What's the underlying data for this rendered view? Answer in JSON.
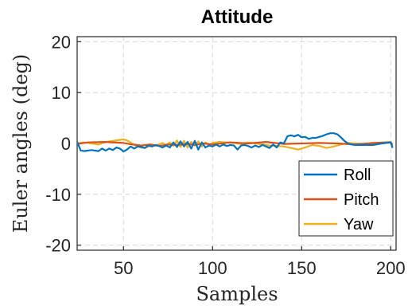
{
  "chart_data": {
    "type": "line",
    "title": "Attitude",
    "xlabel": "Samples",
    "ylabel": "Euler angles (deg)",
    "xlim": [
      24,
      203
    ],
    "ylim": [
      -21,
      21
    ],
    "xticks": [
      50,
      100,
      150,
      200
    ],
    "yticks": [
      -20,
      -10,
      0,
      10,
      20
    ],
    "grid": true,
    "legend_position": "bottom-right",
    "colors": {
      "roll": "#0072BD",
      "pitch": "#D95319",
      "yaw": "#EDB120"
    },
    "series": [
      {
        "name": "Roll",
        "key": "roll",
        "x": [
          24,
          26,
          28,
          32,
          36,
          38,
          40,
          42,
          44,
          46,
          48,
          50,
          52,
          54,
          56,
          58,
          60,
          62,
          64,
          66,
          68,
          70,
          72,
          74,
          76,
          78,
          80,
          82,
          84,
          86,
          88,
          90,
          92,
          94,
          96,
          98,
          100,
          102,
          104,
          106,
          108,
          110,
          112,
          114,
          116,
          118,
          120,
          122,
          124,
          126,
          128,
          130,
          132,
          134,
          136,
          138,
          140,
          142,
          144,
          146,
          148,
          150,
          152,
          154,
          156,
          158,
          160,
          162,
          164,
          166,
          168,
          170,
          172,
          174,
          176,
          178,
          180,
          185,
          190,
          195,
          200,
          201
        ],
        "y": [
          0.3,
          -1.4,
          -1.5,
          -1.3,
          -1.5,
          -1.0,
          -1.4,
          -1.0,
          -1.3,
          -0.8,
          -1.0,
          -1.6,
          -1.2,
          -0.6,
          -1.0,
          -0.6,
          -0.7,
          -0.9,
          -0.4,
          -0.6,
          -0.3,
          -0.5,
          -0.8,
          -0.4,
          -0.8,
          0.2,
          -0.7,
          0.4,
          -0.6,
          0.3,
          -1.0,
          0.5,
          -1.2,
          0.2,
          -0.8,
          -0.4,
          -0.6,
          -0.2,
          -0.6,
          -0.2,
          -0.5,
          -0.3,
          -0.4,
          -1.2,
          -0.4,
          -0.3,
          -0.5,
          -0.8,
          -0.4,
          -0.7,
          -0.3,
          -0.6,
          -0.9,
          -0.2,
          -0.8,
          0.2,
          0.0,
          1.4,
          1.6,
          1.4,
          1.7,
          1.2,
          1.3,
          0.9,
          1.1,
          1.1,
          1.3,
          1.5,
          1.8,
          2.0,
          2.0,
          1.8,
          1.2,
          0.5,
          0.0,
          -0.2,
          -0.3,
          -0.3,
          -0.3,
          0.0,
          0.2,
          -0.9
        ]
      },
      {
        "name": "Pitch",
        "key": "pitch",
        "x": [
          24,
          30,
          40,
          50,
          55,
          60,
          65,
          70,
          75,
          80,
          85,
          90,
          95,
          100,
          110,
          120,
          130,
          140,
          150,
          160,
          170,
          180,
          190,
          200,
          201
        ],
        "y": [
          -0.1,
          0.2,
          0.3,
          0.1,
          -0.2,
          -0.4,
          -0.2,
          -0.5,
          -0.2,
          -0.3,
          -0.1,
          -0.3,
          0.0,
          -0.2,
          0.2,
          0.0,
          0.3,
          -0.1,
          0.0,
          0.1,
          0.0,
          -0.2,
          0.1,
          0.2,
          -0.2
        ]
      },
      {
        "name": "Yaw",
        "key": "yaw",
        "x": [
          24,
          28,
          32,
          36,
          40,
          44,
          48,
          50,
          52,
          54,
          56,
          58,
          60,
          62,
          64,
          66,
          68,
          70,
          72,
          74,
          76,
          78,
          80,
          82,
          84,
          86,
          88,
          90,
          92,
          94,
          96,
          98,
          100,
          104,
          108,
          112,
          116,
          120,
          124,
          128,
          132,
          136,
          140,
          144,
          148,
          152,
          156,
          160,
          164,
          168,
          172,
          176,
          180,
          185,
          190,
          195,
          200,
          201
        ],
        "y": [
          0.0,
          0.2,
          0.0,
          -0.2,
          0.3,
          0.5,
          0.7,
          0.8,
          0.6,
          0.2,
          -0.3,
          -0.6,
          -0.8,
          -0.9,
          -0.6,
          -0.3,
          -0.5,
          -0.2,
          0.1,
          -0.4,
          0.2,
          -0.5,
          0.6,
          -0.7,
          0.5,
          -0.8,
          0.3,
          -0.4,
          0.4,
          -0.6,
          0.2,
          -0.3,
          0.1,
          0.3,
          0.2,
          0.1,
          -0.1,
          0.2,
          0.0,
          -0.2,
          -0.4,
          -0.5,
          -0.6,
          -0.9,
          -1.2,
          -0.8,
          -0.3,
          -0.5,
          -0.9,
          -0.6,
          -0.2,
          0.1,
          0.0,
          -0.1,
          0.0,
          0.2,
          0.3,
          -0.5
        ]
      }
    ]
  }
}
